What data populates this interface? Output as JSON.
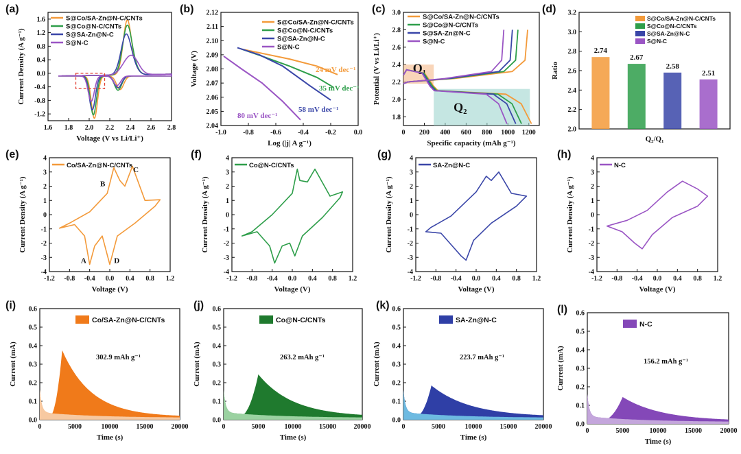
{
  "colors": {
    "orange": "#f39a3a",
    "green": "#2e9e4a",
    "blue": "#3a46a8",
    "purple": "#9a55c4",
    "orange_fill": "#f07a1a",
    "orange_light": "#f7d2b0",
    "green_fill": "#1f7a2e",
    "green_light": "#a8dcae",
    "blue_fill": "#2f3fa6",
    "blue_light": "#74c8e8",
    "purple_fill": "#8448b8",
    "purple_light": "#cbb0e0"
  },
  "chart_data": [
    {
      "id": "a",
      "label": "(a)",
      "type": "line",
      "xlabel": "Voltage (V vs Li/Li⁺)",
      "ylabel": "Current Density (A g⁻¹)",
      "xlim": [
        1.6,
        2.8
      ],
      "ylim": [
        -1.4,
        1.8
      ],
      "xticks": [
        "1.6",
        "1.8",
        "2.0",
        "2.2",
        "2.4",
        "2.6",
        "2.8"
      ],
      "yticks": [
        "-1.2",
        "-0.8",
        "-0.4",
        "0.0",
        "0.4",
        "0.8",
        "1.2",
        "1.6"
      ],
      "series": [
        {
          "name": "S@Co/SA-Zn@N-C/CNTs",
          "color": "orange",
          "red": [
            2.05,
            -1.25,
            2.3,
            -0.4
          ],
          "ox": [
            2.37,
            1.6
          ],
          "width": 0.04
        },
        {
          "name": "S@Co@N-C/CNTs",
          "color": "green",
          "red": [
            2.04,
            -1.15,
            2.28,
            -0.42
          ],
          "ox": [
            2.37,
            1.45
          ],
          "width": 0.045
        },
        {
          "name": "S@SA-Zn@N-C",
          "color": "blue",
          "red": [
            2.03,
            -1.0,
            2.28,
            -0.35
          ],
          "ox": [
            2.36,
            1.2
          ],
          "width": 0.05
        },
        {
          "name": "S@N-C",
          "color": "purple",
          "red": [
            2.02,
            -0.75,
            2.27,
            -0.28
          ],
          "ox": [
            2.4,
            0.55
          ],
          "width": 0.07
        }
      ]
    },
    {
      "id": "b",
      "label": "(b)",
      "type": "line",
      "xlabel": "Log (|j| A g⁻¹)",
      "ylabel": "Voltage (V)",
      "xlim": [
        -1.0,
        0.0
      ],
      "ylim": [
        2.04,
        2.12
      ],
      "xticks": [
        "-1.0",
        "-0.8",
        "-0.6",
        "-0.4",
        "-0.2",
        "0.0"
      ],
      "yticks": [
        "2.04",
        "2.05",
        "2.06",
        "2.07",
        "2.08",
        "2.09",
        "2.10",
        "2.11",
        "2.12"
      ],
      "series": [
        {
          "name": "S@Co/SA-Zn@N-C/CNTs",
          "color": "orange",
          "x": [
            -0.85,
            -0.7,
            -0.5,
            -0.3,
            -0.15
          ],
          "y": [
            2.094,
            2.091,
            2.087,
            2.082,
            2.076
          ],
          "slope": "24 mV dec⁻¹"
        },
        {
          "name": "S@Co@N-C/CNTs",
          "color": "green",
          "x": [
            -0.85,
            -0.7,
            -0.5,
            -0.3,
            -0.18
          ],
          "y": [
            2.094,
            2.089,
            2.082,
            2.074,
            2.067
          ],
          "slope": "35 mV dec⁻¹"
        },
        {
          "name": "S@SA-Zn@N-C",
          "color": "blue",
          "x": [
            -0.88,
            -0.72,
            -0.55,
            -0.35,
            -0.2
          ],
          "y": [
            2.095,
            2.09,
            2.082,
            2.068,
            2.058
          ],
          "slope": "58 mV dec⁻¹"
        },
        {
          "name": "S@N-C",
          "color": "purple",
          "x": [
            -0.98,
            -0.85,
            -0.7,
            -0.55,
            -0.42
          ],
          "y": [
            2.089,
            2.08,
            2.07,
            2.057,
            2.044
          ],
          "slope": "80 mV dec⁻¹"
        }
      ]
    },
    {
      "id": "c",
      "label": "(c)",
      "type": "line",
      "xlabel": "Specific capacity (mAh g⁻¹)",
      "ylabel": "Potential (V vs Li/Li⁺)",
      "xlim": [
        0,
        1300
      ],
      "ylim": [
        1.7,
        3.0
      ],
      "xticks": [
        "0",
        "200",
        "400",
        "600",
        "800",
        "1000",
        "1200"
      ],
      "yticks": [
        "1.8",
        "2.0",
        "2.2",
        "2.4",
        "2.6",
        "2.8",
        "3.0"
      ],
      "regions": [
        {
          "label": "Q₁",
          "x": [
            0,
            290
          ],
          "y": [
            2.18,
            2.4
          ]
        },
        {
          "label": "Q₂",
          "x": [
            290,
            1210
          ],
          "y": [
            1.7,
            2.12
          ]
        }
      ],
      "series": [
        {
          "name": "S@Co/SA-Zn@N-C/CNTs",
          "color": "orange",
          "capacity": 1225,
          "q1": 290
        },
        {
          "name": "S@Co@N-C/CNTs",
          "color": "green",
          "capacity": 1130,
          "q1": 280
        },
        {
          "name": "S@SA-Zn@N-C",
          "color": "blue",
          "capacity": 1075,
          "q1": 265
        },
        {
          "name": "S@N-C",
          "color": "purple",
          "capacity": 990,
          "q1": 255
        }
      ]
    },
    {
      "id": "d",
      "label": "(d)",
      "type": "bar",
      "xlabel": "Q₂/Q₁",
      "ylabel": "Ratio",
      "ylim": [
        2.0,
        3.2
      ],
      "yticks": [
        "2.0",
        "2.2",
        "2.4",
        "2.6",
        "2.8",
        "3.0",
        "3.2"
      ],
      "categories": [
        "S@Co/SA-Zn@N-C/CNTs",
        "S@Co@N-C/CNTs",
        "S@SA-Zn@N-C",
        "S@N-C"
      ],
      "values": [
        2.74,
        2.67,
        2.58,
        2.51
      ],
      "value_labels": [
        "2.74",
        "2.67",
        "2.58",
        "2.51"
      ],
      "colors": [
        "orange",
        "green",
        "blue",
        "purple"
      ]
    },
    {
      "id": "e",
      "label": "(e)",
      "type": "line",
      "legend": "Co/SA-Zn@N-C/CNTs",
      "color": "orange",
      "xlabel": "Voltage (V)",
      "ylabel": "Current Density (A g⁻¹)",
      "xlim": [
        -1.2,
        1.2
      ],
      "ylim": [
        -4,
        4
      ],
      "xticks": [
        "-1.2",
        "-0.8",
        "-0.4",
        "0.0",
        "0.4",
        "0.8",
        "1.2"
      ],
      "yticks": [
        "-4",
        "-3",
        "-2",
        "-1",
        "0",
        "1",
        "2",
        "3",
        "4"
      ],
      "peak_labels": [
        {
          "t": "A",
          "x": -0.52,
          "y": -3.4
        },
        {
          "t": "B",
          "x": -0.14,
          "y": 2.0
        },
        {
          "t": "C",
          "x": 0.52,
          "y": 3.0
        },
        {
          "t": "D",
          "x": 0.14,
          "y": -3.4
        }
      ],
      "cv": {
        "pts": [
          [
            -1.0,
            -0.95
          ],
          [
            -0.7,
            -0.7
          ],
          [
            -0.5,
            -1.5
          ],
          [
            -0.4,
            -3.5
          ],
          [
            -0.3,
            -2.2
          ],
          [
            -0.15,
            -1.5
          ],
          [
            0.0,
            -3.5
          ],
          [
            0.15,
            -1.5
          ],
          [
            0.5,
            -0.6
          ],
          [
            0.9,
            0.6
          ],
          [
            1.0,
            1.05
          ],
          [
            0.7,
            1.0
          ],
          [
            0.45,
            3.4
          ],
          [
            0.3,
            2.0
          ],
          [
            0.2,
            2.4
          ],
          [
            0.08,
            3.3
          ],
          [
            -0.05,
            1.5
          ],
          [
            -0.4,
            0.2
          ],
          [
            -0.8,
            -0.6
          ],
          [
            -1.0,
            -0.95
          ]
        ]
      }
    },
    {
      "id": "f",
      "label": "(f)",
      "type": "line",
      "legend": "Co@N-C/CNTs",
      "color": "green",
      "xlabel": "Voltage (V)",
      "ylabel": "Current Density (A g⁻¹)",
      "xlim": [
        -1.2,
        1.2
      ],
      "ylim": [
        -4,
        4
      ],
      "xticks": [
        "-1.2",
        "-0.8",
        "-0.4",
        "0.0",
        "0.4",
        "0.8",
        "1.2"
      ],
      "yticks": [
        "-4",
        "-3",
        "-2",
        "-1",
        "0",
        "1",
        "2",
        "3",
        "4"
      ],
      "cv": {
        "pts": [
          [
            -1.0,
            -1.5
          ],
          [
            -0.7,
            -1.2
          ],
          [
            -0.45,
            -2.2
          ],
          [
            -0.35,
            -3.4
          ],
          [
            -0.2,
            -2.2
          ],
          [
            -0.05,
            -2.0
          ],
          [
            0.05,
            -2.9
          ],
          [
            0.2,
            -1.5
          ],
          [
            0.6,
            -0.2
          ],
          [
            0.95,
            1.2
          ],
          [
            1.0,
            1.6
          ],
          [
            0.75,
            1.3
          ],
          [
            0.45,
            3.2
          ],
          [
            0.3,
            2.3
          ],
          [
            0.15,
            2.4
          ],
          [
            0.1,
            3.2
          ],
          [
            0.0,
            1.5
          ],
          [
            -0.4,
            0.0
          ],
          [
            -0.8,
            -1.2
          ],
          [
            -1.0,
            -1.5
          ]
        ]
      }
    },
    {
      "id": "g",
      "label": "(g)",
      "type": "line",
      "legend": "SA-Zn@N-C",
      "color": "blue",
      "xlabel": "Voltage (V)",
      "ylabel": "Current Density (A g⁻¹)",
      "xlim": [
        -1.2,
        1.2
      ],
      "ylim": [
        -4,
        4
      ],
      "xticks": [
        "-1.2",
        "-0.8",
        "-0.4",
        "0.0",
        "0.4",
        "0.8",
        "1.2"
      ],
      "yticks": [
        "-4",
        "-3",
        "-2",
        "-1",
        "0",
        "1",
        "2",
        "3",
        "4"
      ],
      "cv": {
        "pts": [
          [
            -1.0,
            -1.2
          ],
          [
            -0.7,
            -1.3
          ],
          [
            -0.4,
            -2.5
          ],
          [
            -0.3,
            -2.9
          ],
          [
            -0.2,
            -3.2
          ],
          [
            -0.05,
            -1.8
          ],
          [
            0.3,
            -0.6
          ],
          [
            0.8,
            0.6
          ],
          [
            1.0,
            1.3
          ],
          [
            0.7,
            1.5
          ],
          [
            0.45,
            3.0
          ],
          [
            0.3,
            2.4
          ],
          [
            0.2,
            2.7
          ],
          [
            0.0,
            1.6
          ],
          [
            -0.5,
            -0.1
          ],
          [
            -0.9,
            -0.9
          ],
          [
            -1.0,
            -1.2
          ]
        ]
      }
    },
    {
      "id": "h",
      "label": "(h)",
      "type": "line",
      "legend": "N-C",
      "color": "purple",
      "xlabel": "Voltage (V)",
      "ylabel": "Current Density (A g⁻¹)",
      "xlim": [
        -1.2,
        1.2
      ],
      "ylim": [
        -4,
        4
      ],
      "xticks": [
        "-1.2",
        "-0.8",
        "-0.4",
        "0.0",
        "0.4",
        "0.8",
        "1.2"
      ],
      "yticks": [
        "-4",
        "-3",
        "-2",
        "-1",
        "0",
        "1",
        "2",
        "3",
        "4"
      ],
      "cv": {
        "pts": [
          [
            -1.0,
            -0.8
          ],
          [
            -0.7,
            -1.2
          ],
          [
            -0.45,
            -2.0
          ],
          [
            -0.3,
            -2.4
          ],
          [
            -0.1,
            -1.4
          ],
          [
            0.3,
            -0.2
          ],
          [
            0.8,
            0.6
          ],
          [
            1.0,
            1.3
          ],
          [
            0.8,
            1.8
          ],
          [
            0.5,
            2.35
          ],
          [
            0.2,
            1.6
          ],
          [
            -0.2,
            0.3
          ],
          [
            -0.6,
            -0.4
          ],
          [
            -1.0,
            -0.8
          ]
        ]
      }
    },
    {
      "id": "i",
      "label": "(i)",
      "type": "area",
      "legend": "Co/SA-Zn@N-C/CNTs",
      "color": "orange_fill",
      "base": "orange_light",
      "capacity": "302.9 mAh g⁻¹",
      "xlabel": "Time (s)",
      "ylabel": "Current (mA)",
      "xlim": [
        0,
        20000
      ],
      "ylim": [
        0,
        0.6
      ],
      "xticks": [
        "0",
        "5000",
        "10000",
        "15000",
        "20000"
      ],
      "yticks": [
        "0.0",
        "0.1",
        "0.2",
        "0.3",
        "0.4",
        "0.5",
        "0.6"
      ],
      "peak": {
        "t": 3200,
        "i": 0.36,
        "rise": 1200,
        "decay": 4200
      }
    },
    {
      "id": "j",
      "label": "(j)",
      "type": "area",
      "legend": "Co@N-C/CNTs",
      "color": "green_fill",
      "base": "green_light",
      "capacity": "263.2 mAh g⁻¹",
      "xlabel": "Time (s)",
      "ylabel": "Current (mA)",
      "xlim": [
        0,
        20000
      ],
      "ylim": [
        0,
        0.6
      ],
      "xticks": [
        "0",
        "5000",
        "10000",
        "15000",
        "20000"
      ],
      "yticks": [
        "0.0",
        "0.1",
        "0.2",
        "0.3",
        "0.4",
        "0.5",
        "0.6"
      ],
      "peak": {
        "t": 5000,
        "i": 0.23,
        "rise": 1800,
        "decay": 5000
      }
    },
    {
      "id": "k",
      "label": "(k)",
      "type": "area",
      "legend": "SA-Zn@N-C",
      "color": "blue_fill",
      "base": "blue_light",
      "capacity": "223.7 mAh g⁻¹",
      "xlabel": "Time (s)",
      "ylabel": "Current (mA)",
      "xlim": [
        0,
        20000
      ],
      "ylim": [
        0,
        0.6
      ],
      "xticks": [
        "0",
        "5000",
        "10000",
        "15000",
        "20000"
      ],
      "yticks": [
        "0.0",
        "0.1",
        "0.2",
        "0.3",
        "0.4",
        "0.5",
        "0.6"
      ],
      "peak": {
        "t": 4000,
        "i": 0.17,
        "rise": 1500,
        "decay": 5500
      }
    },
    {
      "id": "l",
      "label": "(l)",
      "type": "area",
      "legend": "N-C",
      "color": "purple_fill",
      "base": "purple_light",
      "capacity": "156.2 mAh g⁻¹",
      "xlabel": "Time (s)",
      "ylabel": "Current (mA)",
      "xlim": [
        0,
        20000
      ],
      "ylim": [
        0,
        0.6
      ],
      "xticks": [
        "0",
        "5000",
        "10000",
        "15000",
        "20000"
      ],
      "yticks": [
        "0.0",
        "0.1",
        "0.2",
        "0.3",
        "0.4",
        "0.5",
        "0.6"
      ],
      "peak": {
        "t": 5000,
        "i": 0.13,
        "rise": 2000,
        "decay": 5500
      }
    }
  ]
}
